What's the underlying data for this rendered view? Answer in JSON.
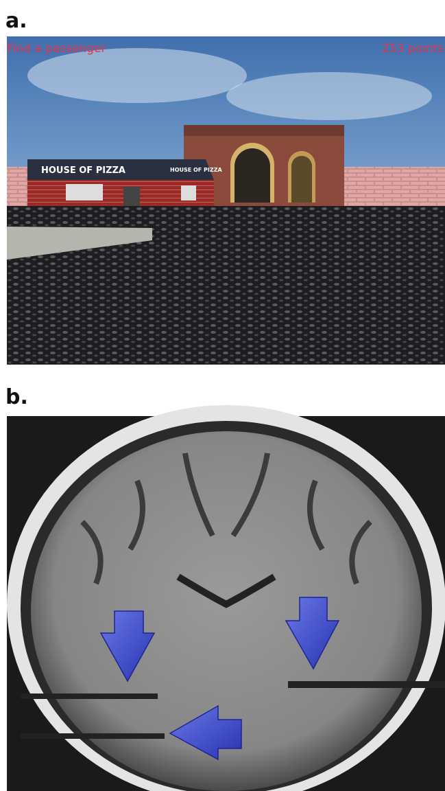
{
  "panels": [
    {
      "label": "a.",
      "hud": {
        "task": "Find a passenger",
        "score": "253 points"
      },
      "signs": [
        "HOUSE OF PIZZA",
        "HOUSE OF PIZZA"
      ]
    },
    {
      "label": "b."
    }
  ]
}
